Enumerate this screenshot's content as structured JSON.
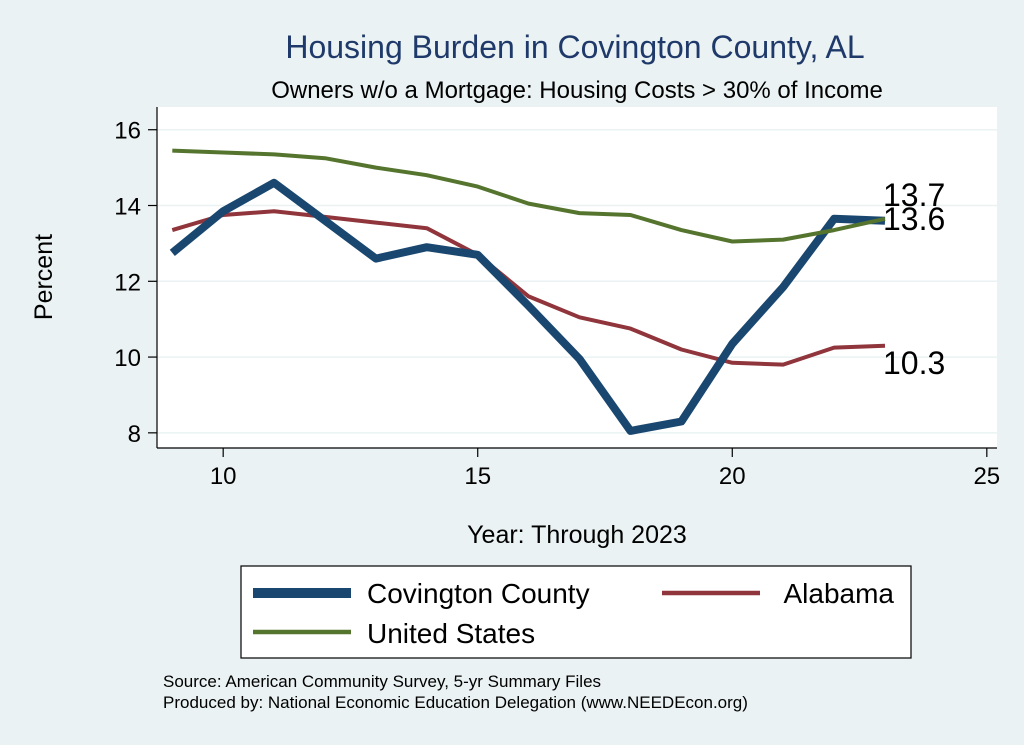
{
  "chart_data": {
    "type": "line",
    "title": "Housing Burden in Covington County, AL",
    "subtitle": "Owners w/o a Mortgage: Housing Costs > 30% of Income",
    "xlabel": "Year: Through 2023",
    "ylabel": "Percent",
    "xlim": [
      8.7,
      25.2
    ],
    "ylim": [
      7.6,
      16.6
    ],
    "x_ticks": [
      10,
      15,
      20,
      25
    ],
    "y_ticks": [
      8,
      10,
      12,
      14,
      16
    ],
    "grid": true,
    "x": [
      9,
      10,
      11,
      12,
      13,
      14,
      15,
      16,
      17,
      18,
      19,
      20,
      21,
      22,
      23
    ],
    "series": [
      {
        "name": "Covington County",
        "color": "#1a476f",
        "values": [
          12.75,
          13.85,
          14.6,
          13.6,
          12.6,
          12.9,
          12.7,
          11.35,
          9.95,
          8.05,
          8.3,
          10.35,
          11.85,
          13.65,
          13.6
        ],
        "end_label": "13.6"
      },
      {
        "name": "Alabama",
        "color": "#90353b",
        "values": [
          13.35,
          13.75,
          13.85,
          13.7,
          13.55,
          13.4,
          12.7,
          11.6,
          11.05,
          10.75,
          10.2,
          9.85,
          9.8,
          10.25,
          10.3
        ],
        "end_label": "10.3"
      },
      {
        "name": "United States",
        "color": "#55752f",
        "values": [
          15.45,
          15.4,
          15.35,
          15.25,
          15.0,
          14.8,
          14.5,
          14.05,
          13.8,
          13.75,
          13.35,
          13.05,
          13.1,
          13.35,
          13.65
        ],
        "end_label": "13.7"
      }
    ],
    "legend": {
      "position": "bottom",
      "entries": [
        "Covington County",
        "Alabama",
        "United States"
      ]
    },
    "notes": [
      "Source: American Community Survey, 5-yr Summary Files",
      "Produced by: National Economic Education Delegation (www.NEEDEcon.org)"
    ]
  }
}
